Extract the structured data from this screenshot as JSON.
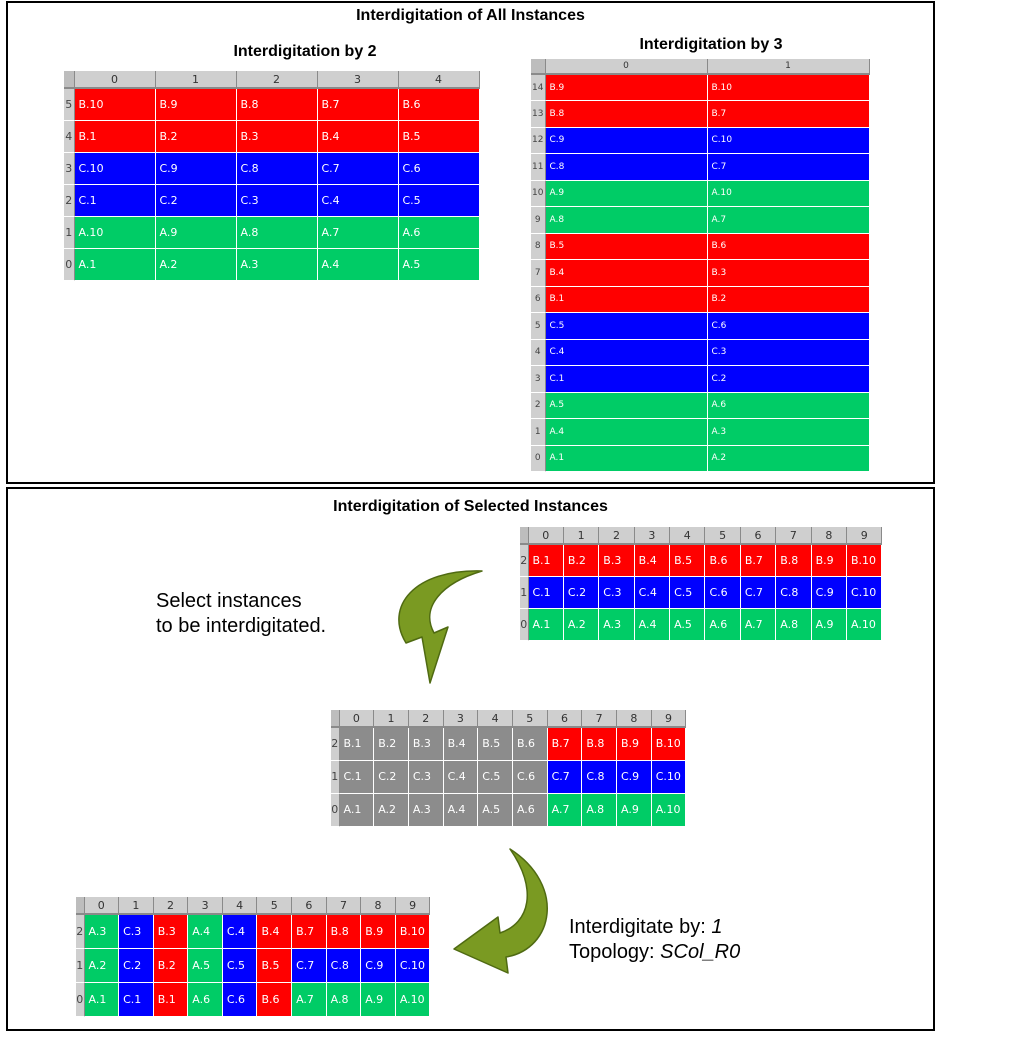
{
  "top": {
    "title": "Interdigitation of All Instances",
    "by2": {
      "title": "Interdigitation by 2",
      "cols": [
        "0",
        "1",
        "2",
        "3",
        "4"
      ],
      "rows": [
        {
          "label": "5",
          "color": "r",
          "cells": [
            "B.10",
            "B.9",
            "B.8",
            "B.7",
            "B.6"
          ]
        },
        {
          "label": "4",
          "color": "r",
          "cells": [
            "B.1",
            "B.2",
            "B.3",
            "B.4",
            "B.5"
          ]
        },
        {
          "label": "3",
          "color": "b",
          "cells": [
            "C.10",
            "C.9",
            "C.8",
            "C.7",
            "C.6"
          ]
        },
        {
          "label": "2",
          "color": "b",
          "cells": [
            "C.1",
            "C.2",
            "C.3",
            "C.4",
            "C.5"
          ]
        },
        {
          "label": "1",
          "color": "g",
          "cells": [
            "A.10",
            "A.9",
            "A.8",
            "A.7",
            "A.6"
          ]
        },
        {
          "label": "0",
          "color": "g",
          "cells": [
            "A.1",
            "A.2",
            "A.3",
            "A.4",
            "A.5"
          ]
        }
      ]
    },
    "by3": {
      "title": "Interdigitation by 3",
      "cols": [
        "0",
        "1"
      ],
      "rows": [
        {
          "label": "14",
          "color": "r",
          "cells": [
            "B.9",
            "B.10"
          ]
        },
        {
          "label": "13",
          "color": "r",
          "cells": [
            "B.8",
            "B.7"
          ]
        },
        {
          "label": "12",
          "color": "b",
          "cells": [
            "C.9",
            "C.10"
          ]
        },
        {
          "label": "11",
          "color": "b",
          "cells": [
            "C.8",
            "C.7"
          ]
        },
        {
          "label": "10",
          "color": "g",
          "cells": [
            "A.9",
            "A.10"
          ]
        },
        {
          "label": "9",
          "color": "g",
          "cells": [
            "A.8",
            "A.7"
          ]
        },
        {
          "label": "8",
          "color": "r",
          "cells": [
            "B.5",
            "B.6"
          ]
        },
        {
          "label": "7",
          "color": "r",
          "cells": [
            "B.4",
            "B.3"
          ]
        },
        {
          "label": "6",
          "color": "r",
          "cells": [
            "B.1",
            "B.2"
          ]
        },
        {
          "label": "5",
          "color": "b",
          "cells": [
            "C.5",
            "C.6"
          ]
        },
        {
          "label": "4",
          "color": "b",
          "cells": [
            "C.4",
            "C.3"
          ]
        },
        {
          "label": "3",
          "color": "b",
          "cells": [
            "C.1",
            "C.2"
          ]
        },
        {
          "label": "2",
          "color": "g",
          "cells": [
            "A.5",
            "A.6"
          ]
        },
        {
          "label": "1",
          "color": "g",
          "cells": [
            "A.4",
            "A.3"
          ]
        },
        {
          "label": "0",
          "color": "g",
          "cells": [
            "A.1",
            "A.2"
          ]
        }
      ]
    }
  },
  "bottom": {
    "title": "Interdigitation of Selected Instances",
    "select_note": [
      "Select instances",
      "to be interdigitated."
    ],
    "interdigitate_label": "Interdigitate by: ",
    "interdigitate_value": "1",
    "topology_label": "Topology: ",
    "topology_value": "SCol_R0",
    "original": {
      "cols": [
        "0",
        "1",
        "2",
        "3",
        "4",
        "5",
        "6",
        "7",
        "8",
        "9"
      ],
      "rows": [
        {
          "label": "2",
          "colors": [
            "r",
            "r",
            "r",
            "r",
            "r",
            "r",
            "r",
            "r",
            "r",
            "r"
          ],
          "cells": [
            "B.1",
            "B.2",
            "B.3",
            "B.4",
            "B.5",
            "B.6",
            "B.7",
            "B.8",
            "B.9",
            "B.10"
          ]
        },
        {
          "label": "1",
          "colors": [
            "b",
            "b",
            "b",
            "b",
            "b",
            "b",
            "b",
            "b",
            "b",
            "b"
          ],
          "cells": [
            "C.1",
            "C.2",
            "C.3",
            "C.4",
            "C.5",
            "C.6",
            "C.7",
            "C.8",
            "C.9",
            "C.10"
          ]
        },
        {
          "label": "0",
          "colors": [
            "g",
            "g",
            "g",
            "g",
            "g",
            "g",
            "g",
            "g",
            "g",
            "g"
          ],
          "cells": [
            "A.1",
            "A.2",
            "A.3",
            "A.4",
            "A.5",
            "A.6",
            "A.7",
            "A.8",
            "A.9",
            "A.10"
          ]
        }
      ]
    },
    "selected": {
      "cols": [
        "0",
        "1",
        "2",
        "3",
        "4",
        "5",
        "6",
        "7",
        "8",
        "9"
      ],
      "rows": [
        {
          "label": "2",
          "colors": [
            "gr",
            "gr",
            "gr",
            "gr",
            "gr",
            "gr",
            "r",
            "r",
            "r",
            "r"
          ],
          "cells": [
            "B.1",
            "B.2",
            "B.3",
            "B.4",
            "B.5",
            "B.6",
            "B.7",
            "B.8",
            "B.9",
            "B.10"
          ]
        },
        {
          "label": "1",
          "colors": [
            "gr",
            "gr",
            "gr",
            "gr",
            "gr",
            "gr",
            "b",
            "b",
            "b",
            "b"
          ],
          "cells": [
            "C.1",
            "C.2",
            "C.3",
            "C.4",
            "C.5",
            "C.6",
            "C.7",
            "C.8",
            "C.9",
            "C.10"
          ]
        },
        {
          "label": "0",
          "colors": [
            "gr",
            "gr",
            "gr",
            "gr",
            "gr",
            "gr",
            "g",
            "g",
            "g",
            "g"
          ],
          "cells": [
            "A.1",
            "A.2",
            "A.3",
            "A.4",
            "A.5",
            "A.6",
            "A.7",
            "A.8",
            "A.9",
            "A.10"
          ]
        }
      ]
    },
    "result": {
      "cols": [
        "0",
        "1",
        "2",
        "3",
        "4",
        "5",
        "6",
        "7",
        "8",
        "9"
      ],
      "rows": [
        {
          "label": "2",
          "colors": [
            "g",
            "b",
            "r",
            "g",
            "b",
            "r",
            "r",
            "r",
            "r",
            "r"
          ],
          "cells": [
            "A.3",
            "C.3",
            "B.3",
            "A.4",
            "C.4",
            "B.4",
            "B.7",
            "B.8",
            "B.9",
            "B.10"
          ]
        },
        {
          "label": "1",
          "colors": [
            "g",
            "b",
            "r",
            "g",
            "b",
            "r",
            "b",
            "b",
            "b",
            "b"
          ],
          "cells": [
            "A.2",
            "C.2",
            "B.2",
            "A.5",
            "C.5",
            "B.5",
            "C.7",
            "C.8",
            "C.9",
            "C.10"
          ]
        },
        {
          "label": "0",
          "colors": [
            "g",
            "b",
            "r",
            "g",
            "b",
            "r",
            "g",
            "g",
            "g",
            "g"
          ],
          "cells": [
            "A.1",
            "C.1",
            "B.1",
            "A.6",
            "C.6",
            "B.6",
            "A.7",
            "A.8",
            "A.9",
            "A.10"
          ]
        }
      ]
    }
  },
  "colors": {
    "red": "#ff0000",
    "blue": "#0000ff",
    "green": "#00cc66",
    "gray": "#8c8c8c",
    "arrow": "#7a9a22"
  }
}
